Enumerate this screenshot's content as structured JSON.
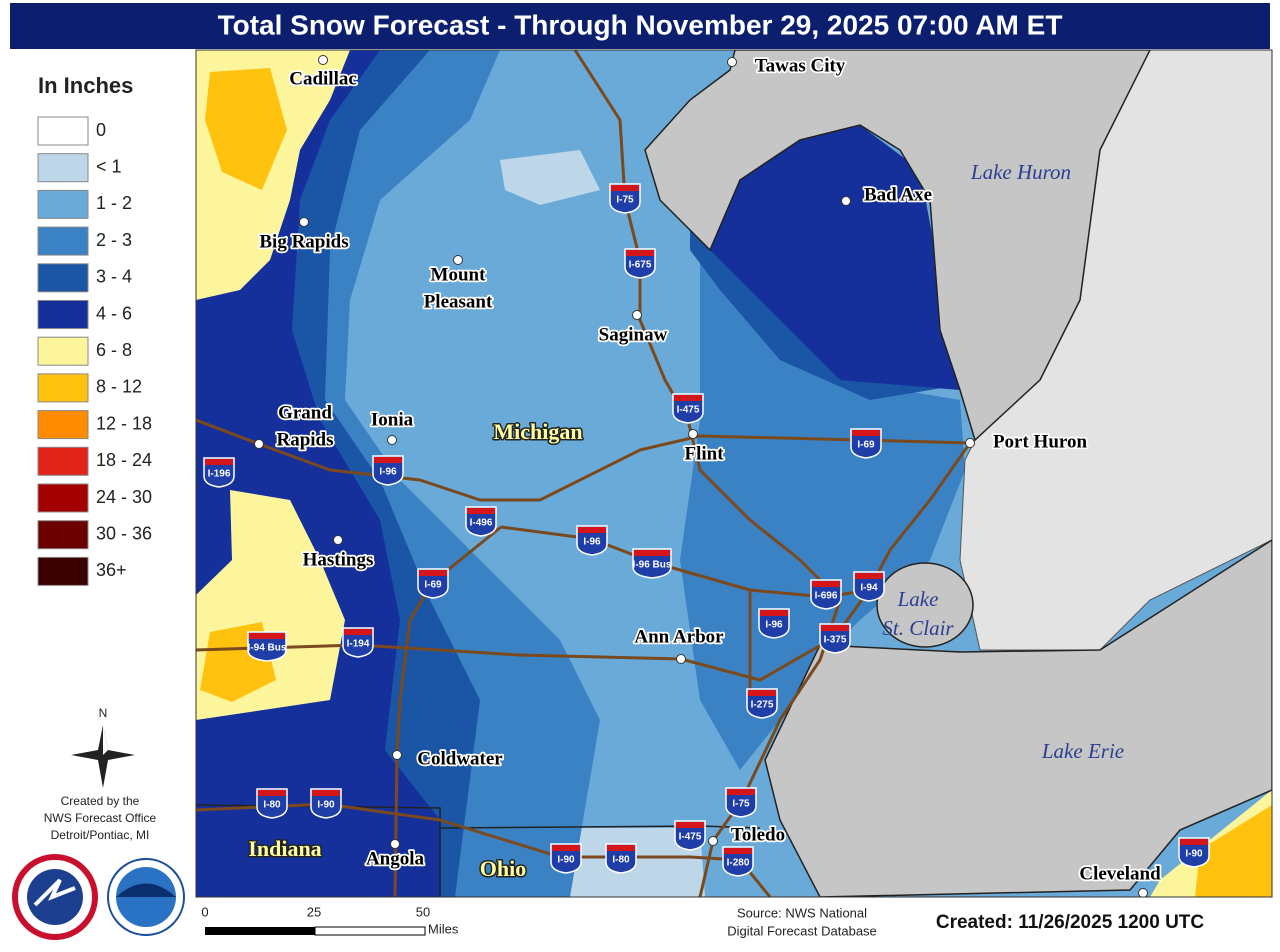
{
  "header": {
    "title": "Total Snow Forecast - Through November 29, 2025 07:00 AM ET"
  },
  "legend": {
    "title": "In Inches",
    "items": [
      {
        "label": "0",
        "color": "#ffffff"
      },
      {
        "label": "< 1",
        "color": "#bdd7e9"
      },
      {
        "label": "1 - 2",
        "color": "#6aaad9"
      },
      {
        "label": "2 - 3",
        "color": "#3b82c4"
      },
      {
        "label": "3 - 4",
        "color": "#1a55a6"
      },
      {
        "label": "4 - 6",
        "color": "#15309a"
      },
      {
        "label": "6 - 8",
        "color": "#fdf59c"
      },
      {
        "label": "8 - 12",
        "color": "#ffc20e"
      },
      {
        "label": "12 - 18",
        "color": "#ff8c00"
      },
      {
        "label": "18 - 24",
        "color": "#e2231a"
      },
      {
        "label": "24 - 30",
        "color": "#a40000"
      },
      {
        "label": "30 - 36",
        "color": "#6a0000"
      },
      {
        "label": "36+",
        "color": "#3a0000"
      }
    ]
  },
  "compass": "N",
  "credit": [
    "Created by the",
    "NWS Forecast Office",
    "Detroit/Pontiac, MI"
  ],
  "map": {
    "cities": [
      {
        "lines": [
          "Cadillac"
        ]
      },
      {
        "lines": [
          "Big Rapids"
        ]
      },
      {
        "lines": [
          "Mount",
          "Pleasant"
        ]
      },
      {
        "lines": [
          "Saginaw"
        ]
      },
      {
        "lines": [
          "Tawas City"
        ]
      },
      {
        "lines": [
          "Bad Axe"
        ]
      },
      {
        "lines": [
          "Grand",
          "Rapids"
        ]
      },
      {
        "lines": [
          "Ionia"
        ]
      },
      {
        "lines": [
          "Flint"
        ]
      },
      {
        "lines": [
          "Port Huron"
        ]
      },
      {
        "lines": [
          "Hastings"
        ]
      },
      {
        "lines": [
          "Ann Arbor"
        ]
      },
      {
        "lines": [
          "Coldwater"
        ]
      },
      {
        "lines": [
          "Angola"
        ]
      },
      {
        "lines": [
          "Toledo"
        ]
      },
      {
        "lines": [
          "Cleveland"
        ]
      }
    ],
    "states": [
      "Michigan",
      "Indiana",
      "Ohio"
    ],
    "lakes": [
      {
        "lines": [
          "Lake Huron"
        ]
      },
      {
        "lines": [
          "Lake",
          "St. Clair"
        ]
      },
      {
        "lines": [
          "Lake Erie"
        ]
      }
    ],
    "shields": [
      "I-75",
      "I-675",
      "I-475",
      "I-69",
      "I-196",
      "I-96",
      "I-496",
      "I-96",
      "I-96 Bus",
      "I-69",
      "I-696",
      "I-94",
      "I-96",
      "I-375",
      "I-94 Bus",
      "I-194",
      "I-275",
      "I-75",
      "I-80",
      "I-90",
      "I-475",
      "I-280",
      "I-90",
      "I-80",
      "I-90"
    ]
  },
  "scale": {
    "ticks": [
      "0",
      "25",
      "50"
    ],
    "unit": "Miles"
  },
  "source": [
    "Source: NWS National",
    "Digital Forecast Database"
  ],
  "created": "Created:  11/26/2025 1200 UTC"
}
